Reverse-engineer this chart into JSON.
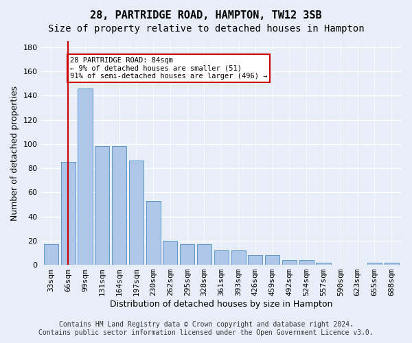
{
  "title1": "28, PARTRIDGE ROAD, HAMPTON, TW12 3SB",
  "title2": "Size of property relative to detached houses in Hampton",
  "xlabel": "Distribution of detached houses by size in Hampton",
  "ylabel": "Number of detached properties",
  "categories": [
    "33sqm",
    "66sqm",
    "99sqm",
    "131sqm",
    "164sqm",
    "197sqm",
    "230sqm",
    "262sqm",
    "295sqm",
    "328sqm",
    "361sqm",
    "393sqm",
    "426sqm",
    "459sqm",
    "492sqm",
    "524sqm",
    "557sqm",
    "590sqm",
    "623sqm",
    "655sqm",
    "688sqm"
  ],
  "values": [
    17,
    85,
    146,
    98,
    98,
    86,
    53,
    20,
    17,
    17,
    12,
    12,
    8,
    8,
    4,
    4,
    2,
    0,
    0,
    2,
    2
  ],
  "bar_color": "#aec6e8",
  "bar_edge_color": "#5a96c8",
  "background_color": "#e8eef7",
  "grid_color": "#ffffff",
  "vline_x": 1,
  "vline_color": "#cc0000",
  "annotation_text": "28 PARTRIDGE ROAD: 84sqm\n← 9% of detached houses are smaller (51)\n91% of semi-detached houses are larger (496) →",
  "annotation_box_color": "#ffffff",
  "annotation_box_edge": "#cc0000",
  "ylim": [
    0,
    185
  ],
  "yticks": [
    0,
    20,
    40,
    60,
    80,
    100,
    120,
    140,
    160,
    180
  ],
  "footer1": "Contains HM Land Registry data © Crown copyright and database right 2024.",
  "footer2": "Contains public sector information licensed under the Open Government Licence v3.0.",
  "title1_fontsize": 11,
  "title2_fontsize": 10,
  "xlabel_fontsize": 9,
  "ylabel_fontsize": 9,
  "tick_fontsize": 8,
  "footer_fontsize": 7
}
